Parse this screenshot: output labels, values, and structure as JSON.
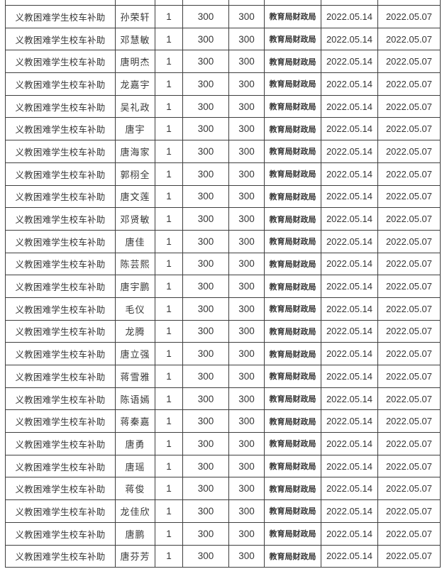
{
  "table": {
    "border_color": "#3e3e3e",
    "text_color": "#363636",
    "rows": [
      {
        "subsidy": "义教困难学生校车补助",
        "name": "孙荣轩",
        "count": "1",
        "standard": "300",
        "amount": "300",
        "agency": "教育局财政局",
        "pay_date": "2022.05.14",
        "post_date": "2022.05.07"
      },
      {
        "subsidy": "义教困难学生校车补助",
        "name": "邓慧敏",
        "count": "1",
        "standard": "300",
        "amount": "300",
        "agency": "教育局财政局",
        "pay_date": "2022.05.14",
        "post_date": "2022.05.07"
      },
      {
        "subsidy": "义教困难学生校车补助",
        "name": "唐明杰",
        "count": "1",
        "standard": "300",
        "amount": "300",
        "agency": "教育局财政局",
        "pay_date": "2022.05.14",
        "post_date": "2022.05.07"
      },
      {
        "subsidy": "义教困难学生校车补助",
        "name": "龙嘉宇",
        "count": "1",
        "standard": "300",
        "amount": "300",
        "agency": "教育局财政局",
        "pay_date": "2022.05.14",
        "post_date": "2022.05.07"
      },
      {
        "subsidy": "义教困难学生校车补助",
        "name": "吴礼政",
        "count": "1",
        "standard": "300",
        "amount": "300",
        "agency": "教育局财政局",
        "pay_date": "2022.05.14",
        "post_date": "2022.05.07"
      },
      {
        "subsidy": "义教困难学生校车补助",
        "name": "唐宇",
        "count": "1",
        "standard": "300",
        "amount": "300",
        "agency": "教育局财政局",
        "pay_date": "2022.05.14",
        "post_date": "2022.05.07"
      },
      {
        "subsidy": "义教困难学生校车补助",
        "name": "唐海家",
        "count": "1",
        "standard": "300",
        "amount": "300",
        "agency": "教育局财政局",
        "pay_date": "2022.05.14",
        "post_date": "2022.05.07"
      },
      {
        "subsidy": "义教困难学生校车补助",
        "name": "郭栩全",
        "count": "1",
        "standard": "300",
        "amount": "300",
        "agency": "教育局财政局",
        "pay_date": "2022.05.14",
        "post_date": "2022.05.07"
      },
      {
        "subsidy": "义教困难学生校车补助",
        "name": "唐文莲",
        "count": "1",
        "standard": "300",
        "amount": "300",
        "agency": "教育局财政局",
        "pay_date": "2022.05.14",
        "post_date": "2022.05.07"
      },
      {
        "subsidy": "义教困难学生校车补助",
        "name": "邓贤敏",
        "count": "1",
        "standard": "300",
        "amount": "300",
        "agency": "教育局财政局",
        "pay_date": "2022.05.14",
        "post_date": "2022.05.07"
      },
      {
        "subsidy": "义教困难学生校车补助",
        "name": "唐佳",
        "count": "1",
        "standard": "300",
        "amount": "300",
        "agency": "教育局财政局",
        "pay_date": "2022.05.14",
        "post_date": "2022.05.07"
      },
      {
        "subsidy": "义教困难学生校车补助",
        "name": "陈芸熙",
        "count": "1",
        "standard": "300",
        "amount": "300",
        "agency": "教育局财政局",
        "pay_date": "2022.05.14",
        "post_date": "2022.05.07"
      },
      {
        "subsidy": "义教困难学生校车补助",
        "name": "唐宇鹏",
        "count": "1",
        "standard": "300",
        "amount": "300",
        "agency": "教育局财政局",
        "pay_date": "2022.05.14",
        "post_date": "2022.05.07"
      },
      {
        "subsidy": "义教困难学生校车补助",
        "name": "毛仪",
        "count": "1",
        "standard": "300",
        "amount": "300",
        "agency": "教育局财政局",
        "pay_date": "2022.05.14",
        "post_date": "2022.05.07"
      },
      {
        "subsidy": "义教困难学生校车补助",
        "name": "龙腾",
        "count": "1",
        "standard": "300",
        "amount": "300",
        "agency": "教育局财政局",
        "pay_date": "2022.05.14",
        "post_date": "2022.05.07"
      },
      {
        "subsidy": "义教困难学生校车补助",
        "name": "唐立强",
        "count": "1",
        "standard": "300",
        "amount": "300",
        "agency": "教育局财政局",
        "pay_date": "2022.05.14",
        "post_date": "2022.05.07"
      },
      {
        "subsidy": "义教困难学生校车补助",
        "name": "蒋雪雅",
        "count": "1",
        "standard": "300",
        "amount": "300",
        "agency": "教育局财政局",
        "pay_date": "2022.05.14",
        "post_date": "2022.05.07"
      },
      {
        "subsidy": "义教困难学生校车补助",
        "name": "陈语嫣",
        "count": "1",
        "standard": "300",
        "amount": "300",
        "agency": "教育局财政局",
        "pay_date": "2022.05.14",
        "post_date": "2022.05.07"
      },
      {
        "subsidy": "义教困难学生校车补助",
        "name": "蒋秦嘉",
        "count": "1",
        "standard": "300",
        "amount": "300",
        "agency": "教育局财政局",
        "pay_date": "2022.05.14",
        "post_date": "2022.05.07"
      },
      {
        "subsidy": "义教困难学生校车补助",
        "name": "唐勇",
        "count": "1",
        "standard": "300",
        "amount": "300",
        "agency": "教育局财政局",
        "pay_date": "2022.05.14",
        "post_date": "2022.05.07"
      },
      {
        "subsidy": "义教困难学生校车补助",
        "name": "唐瑶",
        "count": "1",
        "standard": "300",
        "amount": "300",
        "agency": "教育局财政局",
        "pay_date": "2022.05.14",
        "post_date": "2022.05.07"
      },
      {
        "subsidy": "义教困难学生校车补助",
        "name": "蒋俊",
        "count": "1",
        "standard": "300",
        "amount": "300",
        "agency": "教育局财政局",
        "pay_date": "2022.05.14",
        "post_date": "2022.05.07"
      },
      {
        "subsidy": "义教困难学生校车补助",
        "name": "龙佳欣",
        "count": "1",
        "standard": "300",
        "amount": "300",
        "agency": "教育局财政局",
        "pay_date": "2022.05.14",
        "post_date": "2022.05.07"
      },
      {
        "subsidy": "义教困难学生校车补助",
        "name": "唐鹏",
        "count": "1",
        "standard": "300",
        "amount": "300",
        "agency": "教育局财政局",
        "pay_date": "2022.05.14",
        "post_date": "2022.05.07"
      },
      {
        "subsidy": "义教困难学生校车补助",
        "name": "唐芬芳",
        "count": "1",
        "standard": "300",
        "amount": "300",
        "agency": "教育局财政局",
        "pay_date": "2022.05.14",
        "post_date": "2022.05.07"
      }
    ]
  }
}
